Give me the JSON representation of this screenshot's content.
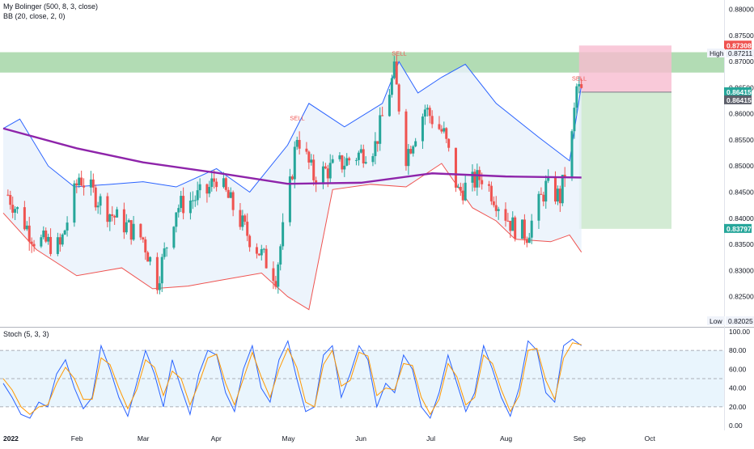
{
  "legend": {
    "line1": "My Bolinger (500, 8, 3, close)",
    "line2": "BB (20, close, 2, 0)",
    "stoch_label": "Stoch (5, 3, 3)"
  },
  "markers": {
    "high_label": "High",
    "low_label": "Low",
    "high_value": "0.87211",
    "low_value": "0.82025",
    "sell_label": "SELL"
  },
  "colors": {
    "up": "#26a69a",
    "down": "#ef5350",
    "bb_upper": "#2962ff",
    "bb_lower": "#ef5350",
    "bb_fill": "#e8f1fb",
    "ma": "#8e24aa",
    "supply_zone": "#a5d6a7",
    "stop_zone": "#f8bbd0",
    "target_zone": "#c8e6c9",
    "stoch_k": "#2962ff",
    "stoch_d": "#ff9800",
    "stoch_band": "#e3f2fd"
  },
  "chart_data": [
    {
      "type": "candlestick",
      "title": "",
      "x_labels": [
        "2022",
        "Feb",
        "Mar",
        "Apr",
        "May",
        "Jun",
        "Jul",
        "Aug",
        "Sep",
        "Oct"
      ],
      "y_ticks": [
        "0.82500",
        "0.83000",
        "0.83500",
        "0.84000",
        "0.84500",
        "0.85000",
        "0.85500",
        "0.86000",
        "0.86500",
        "0.87000",
        "0.87500",
        "0.88000"
      ],
      "ylim": [
        0.8192,
        0.8818
      ],
      "price_tags": [
        {
          "label": "0.87308",
          "value": 0.87308,
          "color": "#ef5350"
        },
        {
          "label": "0.86415",
          "value": 0.86415,
          "color": "#26a69a"
        },
        {
          "label": "0.86415",
          "value": 0.86415,
          "color": "#5d606b"
        },
        {
          "label": "0.83797",
          "value": 0.83797,
          "color": "#26a69a"
        }
      ],
      "supply_zone": [
        0.8679,
        0.8718
      ],
      "position": {
        "entry": 0.86415,
        "stop": 0.87308,
        "target": 0.83797,
        "start": "2022-09-01",
        "end": "2022-10-10"
      },
      "sell_signals": [
        {
          "date": "2022-05-04",
          "price": 0.8588
        },
        {
          "date": "2022-06-16",
          "price": 0.8712
        },
        {
          "date": "2022-08-31",
          "price": 0.8664
        }
      ],
      "moving_average_500": [
        {
          "date": "2022-01-01",
          "value": 0.8572
        },
        {
          "date": "2022-02-01",
          "value": 0.8534
        },
        {
          "date": "2022-03-01",
          "value": 0.8507
        },
        {
          "date": "2022-04-01",
          "value": 0.8487
        },
        {
          "date": "2022-05-01",
          "value": 0.8466
        },
        {
          "date": "2022-06-01",
          "value": 0.8468
        },
        {
          "date": "2022-07-01",
          "value": 0.8486
        },
        {
          "date": "2022-08-01",
          "value": 0.848
        },
        {
          "date": "2022-09-02",
          "value": 0.8478
        }
      ],
      "bb_upper": [
        {
          "date": "2022-01-01",
          "value": 0.8572
        },
        {
          "date": "2022-01-08",
          "value": 0.859
        },
        {
          "date": "2022-01-20",
          "value": 0.85
        },
        {
          "date": "2022-01-31",
          "value": 0.846
        },
        {
          "date": "2022-02-15",
          "value": 0.8465
        },
        {
          "date": "2022-03-01",
          "value": 0.847
        },
        {
          "date": "2022-03-15",
          "value": 0.846
        },
        {
          "date": "2022-04-01",
          "value": 0.8495
        },
        {
          "date": "2022-04-15",
          "value": 0.845
        },
        {
          "date": "2022-05-01",
          "value": 0.854
        },
        {
          "date": "2022-05-10",
          "value": 0.862
        },
        {
          "date": "2022-05-25",
          "value": 0.8575
        },
        {
          "date": "2022-06-10",
          "value": 0.862
        },
        {
          "date": "2022-06-17",
          "value": 0.87
        },
        {
          "date": "2022-06-25",
          "value": 0.864
        },
        {
          "date": "2022-07-05",
          "value": 0.867
        },
        {
          "date": "2022-07-15",
          "value": 0.8695
        },
        {
          "date": "2022-07-28",
          "value": 0.862
        },
        {
          "date": "2022-08-15",
          "value": 0.8555
        },
        {
          "date": "2022-08-28",
          "value": 0.851
        },
        {
          "date": "2022-09-02",
          "value": 0.8655
        }
      ],
      "bb_lower": [
        {
          "date": "2022-01-01",
          "value": 0.841
        },
        {
          "date": "2022-01-15",
          "value": 0.834
        },
        {
          "date": "2022-02-01",
          "value": 0.829
        },
        {
          "date": "2022-02-20",
          "value": 0.8305
        },
        {
          "date": "2022-03-05",
          "value": 0.8265
        },
        {
          "date": "2022-03-20",
          "value": 0.827
        },
        {
          "date": "2022-04-01",
          "value": 0.828
        },
        {
          "date": "2022-04-20",
          "value": 0.8295
        },
        {
          "date": "2022-05-01",
          "value": 0.825
        },
        {
          "date": "2022-05-10",
          "value": 0.8225
        },
        {
          "date": "2022-05-20",
          "value": 0.8455
        },
        {
          "date": "2022-06-05",
          "value": 0.8465
        },
        {
          "date": "2022-06-20",
          "value": 0.846
        },
        {
          "date": "2022-07-05",
          "value": 0.8505
        },
        {
          "date": "2022-07-18",
          "value": 0.842
        },
        {
          "date": "2022-07-28",
          "value": 0.8395
        },
        {
          "date": "2022-08-05",
          "value": 0.836
        },
        {
          "date": "2022-08-20",
          "value": 0.8355
        },
        {
          "date": "2022-08-28",
          "value": 0.8368
        },
        {
          "date": "2022-09-02",
          "value": 0.8335
        }
      ],
      "candles_summary": [
        {
          "date": "2022-01-03",
          "close": 0.8445
        },
        {
          "date": "2022-01-14",
          "close": 0.836
        },
        {
          "date": "2022-01-25",
          "close": 0.8345
        },
        {
          "date": "2022-02-02",
          "close": 0.848
        },
        {
          "date": "2022-02-15",
          "close": 0.841
        },
        {
          "date": "2022-03-01",
          "close": 0.836
        },
        {
          "date": "2022-03-07",
          "close": 0.828
        },
        {
          "date": "2022-03-15",
          "close": 0.842
        },
        {
          "date": "2022-03-28",
          "close": 0.845
        },
        {
          "date": "2022-04-01",
          "close": 0.848
        },
        {
          "date": "2022-04-14",
          "close": 0.837
        },
        {
          "date": "2022-04-26",
          "close": 0.829
        },
        {
          "date": "2022-05-02",
          "close": 0.846
        },
        {
          "date": "2022-05-05",
          "close": 0.856
        },
        {
          "date": "2022-05-12",
          "close": 0.848
        },
        {
          "date": "2022-05-24",
          "close": 0.8505
        },
        {
          "date": "2022-06-07",
          "close": 0.854
        },
        {
          "date": "2022-06-15",
          "close": 0.868
        },
        {
          "date": "2022-06-20",
          "close": 0.852
        },
        {
          "date": "2022-06-28",
          "close": 0.861
        },
        {
          "date": "2022-07-06",
          "close": 0.856
        },
        {
          "date": "2022-07-12",
          "close": 0.845
        },
        {
          "date": "2022-07-22",
          "close": 0.848
        },
        {
          "date": "2022-08-04",
          "close": 0.8385
        },
        {
          "date": "2022-08-10",
          "close": 0.837
        },
        {
          "date": "2022-08-18",
          "close": 0.846
        },
        {
          "date": "2022-08-24",
          "close": 0.844
        },
        {
          "date": "2022-08-29",
          "close": 0.8555
        },
        {
          "date": "2022-08-31",
          "close": 0.865
        },
        {
          "date": "2022-09-02",
          "close": 0.8641
        }
      ]
    },
    {
      "type": "line",
      "title": "",
      "y_ticks": [
        "0.00",
        "20.00",
        "40.00",
        "60.00",
        "80.00",
        "100.00"
      ],
      "ylim": [
        -5,
        105
      ],
      "levels": [
        20,
        50,
        80
      ],
      "series": [
        {
          "name": "",
          "values": [
            45,
            30,
            12,
            8,
            25,
            20,
            55,
            70,
            40,
            18,
            30,
            85,
            60,
            30,
            10,
            45,
            80,
            55,
            20,
            70,
            40,
            12,
            55,
            80,
            75,
            35,
            15,
            60,
            85,
            40,
            25,
            70,
            90,
            50,
            15,
            20,
            75,
            85,
            30,
            55,
            85,
            70,
            20,
            45,
            35,
            75,
            60,
            20,
            8,
            35,
            75,
            45,
            15,
            35,
            85,
            60,
            30,
            10,
            40,
            90,
            80,
            35,
            25,
            85,
            92,
            85
          ]
        },
        {
          "name": "",
          "values": [
            50,
            38,
            20,
            12,
            20,
            22,
            45,
            62,
            50,
            28,
            28,
            72,
            65,
            40,
            18,
            38,
            70,
            62,
            32,
            58,
            50,
            22,
            45,
            72,
            76,
            45,
            22,
            50,
            78,
            52,
            30,
            60,
            82,
            62,
            25,
            20,
            65,
            80,
            42,
            48,
            78,
            74,
            32,
            40,
            38,
            66,
            64,
            30,
            12,
            28,
            66,
            52,
            22,
            30,
            75,
            66,
            38,
            15,
            32,
            80,
            82,
            48,
            28,
            72,
            88,
            86
          ]
        }
      ]
    }
  ]
}
